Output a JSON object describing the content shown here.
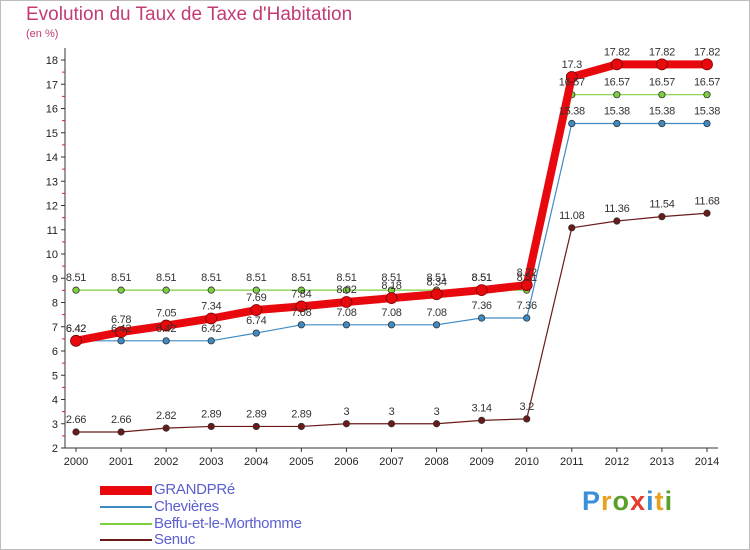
{
  "title": "Evolution du Taux de Taxe d'Habitation",
  "subtitle": "(en %)",
  "logo": {
    "text": "Proxiti",
    "colors": [
      "#3a8fd9",
      "#e6a21e",
      "#5a9f2a",
      "#e63a2a",
      "#3a8fd9",
      "#e6a21e",
      "#5a9f2a"
    ]
  },
  "chart_data": {
    "type": "line",
    "title": "Evolution du Taux de Taxe d'Habitation",
    "ylabel": "(en %)",
    "xlabel": "",
    "x": [
      "2000",
      "2001",
      "2002",
      "2003",
      "2004",
      "2005",
      "2006",
      "2007",
      "2008",
      "2009",
      "2010",
      "2011",
      "2012",
      "2013",
      "2014"
    ],
    "yticks": [
      2,
      3,
      4,
      5,
      6,
      7,
      8,
      9,
      10,
      11,
      12,
      13,
      14,
      15,
      16,
      17,
      18
    ],
    "ylim": [
      2,
      18
    ],
    "grid": false,
    "legend": "bottom-left",
    "series": [
      {
        "name": "GRANDPRé",
        "color": "#e8090e",
        "width": 8,
        "values": [
          6.42,
          6.78,
          7.05,
          7.34,
          7.69,
          7.84,
          8.02,
          8.18,
          8.34,
          8.51,
          8.72,
          17.3,
          17.82,
          17.82,
          17.82
        ],
        "labels": [
          "6.42",
          "6.78",
          "7.05",
          "7.34",
          "7.69",
          "7.84",
          "8.02",
          "8.18",
          "8.34",
          "8.51",
          "8.72",
          "17.3",
          "17.82",
          "17.82",
          "17.82"
        ]
      },
      {
        "name": "Chevières",
        "color": "#3e8bc4",
        "width": 1.2,
        "values": [
          6.42,
          6.42,
          6.42,
          6.42,
          6.74,
          7.08,
          7.08,
          7.08,
          7.08,
          7.36,
          7.36,
          15.38,
          15.38,
          15.38,
          15.38
        ],
        "labels": [
          "6.42",
          "6.42",
          "6.42",
          "6.42",
          "6.74",
          "7.08",
          "7.08",
          "7.08",
          "7.08",
          "7.36",
          "7.36",
          "15.38",
          "15.38",
          "15.38",
          "15.38"
        ]
      },
      {
        "name": "Beffu-et-le-Morthomme",
        "color": "#7ccf3e",
        "width": 1.2,
        "values": [
          8.51,
          8.51,
          8.51,
          8.51,
          8.51,
          8.51,
          8.51,
          8.51,
          8.51,
          8.51,
          8.51,
          16.57,
          16.57,
          16.57,
          16.57
        ],
        "labels": [
          "8.51",
          "8.51",
          "8.51",
          "8.51",
          "8.51",
          "8.51",
          "8.51",
          "8.51",
          "8.51",
          "8.51",
          "8.51",
          "16.57",
          "16.57",
          "16.57",
          "16.57"
        ]
      },
      {
        "name": "Senuc",
        "color": "#6b1a1a",
        "width": 1.2,
        "values": [
          2.66,
          2.66,
          2.82,
          2.89,
          2.89,
          2.89,
          3,
          3,
          3,
          3.14,
          3.2,
          11.08,
          11.36,
          11.54,
          11.68
        ],
        "labels": [
          "2.66",
          "2.66",
          "2.82",
          "2.89",
          "2.89",
          "2.89",
          "3",
          "3",
          "3",
          "3.14",
          "3.2",
          "11.08",
          "11.36",
          "11.54",
          "11.68"
        ]
      }
    ]
  }
}
